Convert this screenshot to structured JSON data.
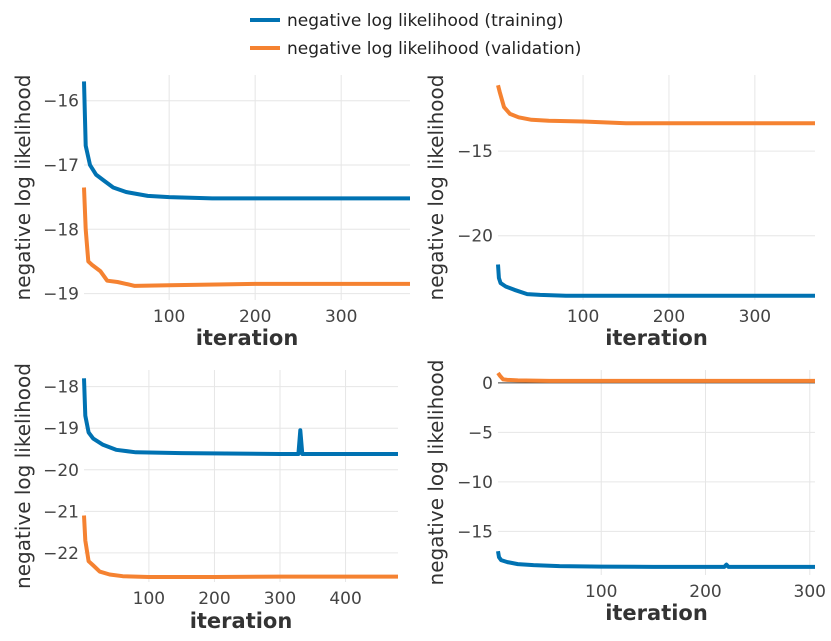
{
  "legend": {
    "placement": "top-center",
    "items": [
      {
        "label": "negative log likelihood (training)",
        "color": "#0072b2"
      },
      {
        "label": "negative log likelihood (validation)",
        "color": "#f58231"
      }
    ]
  },
  "colors": {
    "training": "#0072b2",
    "validation": "#f58231",
    "grid": "#e6e6e6",
    "tick_text": "#444444"
  },
  "chart_data": [
    {
      "type": "line",
      "xlabel": "iteration",
      "ylabel": "negative log likelihood",
      "xlim": [
        1,
        380
      ],
      "ylim": [
        -19.1,
        -15.6
      ],
      "xticks": [
        100,
        200,
        300
      ],
      "yticks": [
        -16,
        -17,
        -18,
        -19
      ],
      "grid": true,
      "series": [
        {
          "name": "negative log likelihood (training)",
          "color": "#0072b2",
          "x": [
            1,
            3,
            8,
            15,
            25,
            35,
            50,
            75,
            100,
            150,
            200,
            300,
            380
          ],
          "y": [
            -15.7,
            -16.7,
            -17.0,
            -17.15,
            -17.25,
            -17.35,
            -17.42,
            -17.48,
            -17.5,
            -17.52,
            -17.52,
            -17.52,
            -17.52
          ]
        },
        {
          "name": "negative log likelihood (validation)",
          "color": "#f58231",
          "x": [
            1,
            3,
            6,
            10,
            20,
            28,
            40,
            50,
            60,
            100,
            200,
            300,
            380
          ],
          "y": [
            -17.35,
            -18.0,
            -18.5,
            -18.55,
            -18.65,
            -18.8,
            -18.82,
            -18.85,
            -18.88,
            -18.87,
            -18.85,
            -18.85,
            -18.85
          ]
        }
      ]
    },
    {
      "type": "line",
      "xlabel": "iteration",
      "ylabel": "negative log likelihood",
      "xlim": [
        1,
        370
      ],
      "ylim": [
        -23.8,
        -10.5
      ],
      "xticks": [
        100,
        200,
        300
      ],
      "yticks": [
        -15,
        -20
      ],
      "grid": true,
      "series": [
        {
          "name": "negative log likelihood (training)",
          "color": "#0072b2",
          "x": [
            1,
            2,
            4,
            10,
            20,
            35,
            50,
            80,
            100,
            200,
            370
          ],
          "y": [
            -21.7,
            -22.5,
            -22.8,
            -23.0,
            -23.2,
            -23.45,
            -23.5,
            -23.55,
            -23.55,
            -23.55,
            -23.55
          ]
        },
        {
          "name": "negative log likelihood (validation)",
          "color": "#f58231",
          "x": [
            1,
            3,
            8,
            15,
            25,
            40,
            60,
            100,
            150,
            200,
            370
          ],
          "y": [
            -11.1,
            -11.5,
            -12.4,
            -12.8,
            -13.0,
            -13.15,
            -13.2,
            -13.25,
            -13.35,
            -13.35,
            -13.35
          ]
        }
      ]
    },
    {
      "type": "line",
      "xlabel": "iteration",
      "ylabel": "negative log likelihood",
      "xlim": [
        1,
        480
      ],
      "ylim": [
        -22.7,
        -17.6
      ],
      "xticks": [
        100,
        200,
        300,
        400
      ],
      "yticks": [
        -18,
        -19,
        -20,
        -21,
        -22
      ],
      "grid": true,
      "series": [
        {
          "name": "negative log likelihood (training)",
          "color": "#0072b2",
          "x": [
            1,
            3,
            8,
            15,
            30,
            50,
            80,
            150,
            300,
            328,
            331,
            334,
            480
          ],
          "y": [
            -17.8,
            -18.7,
            -19.1,
            -19.25,
            -19.4,
            -19.52,
            -19.58,
            -19.6,
            -19.62,
            -19.62,
            -19.05,
            -19.62,
            -19.62
          ]
        },
        {
          "name": "negative log likelihood (validation)",
          "color": "#f58231",
          "x": [
            1,
            3,
            8,
            15,
            25,
            40,
            60,
            100,
            200,
            300,
            480
          ],
          "y": [
            -21.1,
            -21.7,
            -22.2,
            -22.3,
            -22.45,
            -22.52,
            -22.56,
            -22.58,
            -22.58,
            -22.57,
            -22.57
          ]
        }
      ]
    },
    {
      "type": "line",
      "xlabel": "iteration",
      "ylabel": "negative log likelihood",
      "xlim": [
        1,
        305
      ],
      "ylim": [
        -19.4,
        1.3
      ],
      "xticks": [
        100,
        200,
        300
      ],
      "yticks": [
        0,
        -5,
        -10,
        -15
      ],
      "grid": true,
      "series": [
        {
          "name": "negative log likelihood (training)",
          "color": "#0072b2",
          "x": [
            1,
            2,
            4,
            10,
            20,
            35,
            60,
            100,
            150,
            218,
            220,
            222,
            305
          ],
          "y": [
            -17.0,
            -17.6,
            -17.9,
            -18.1,
            -18.3,
            -18.4,
            -18.5,
            -18.55,
            -18.58,
            -18.58,
            -18.35,
            -18.58,
            -18.58
          ]
        },
        {
          "name": "negative log likelihood (validation)",
          "color": "#f58231",
          "x": [
            1,
            3,
            6,
            10,
            20,
            50,
            100,
            200,
            305
          ],
          "y": [
            1.0,
            0.7,
            0.35,
            0.3,
            0.25,
            0.2,
            0.2,
            0.2,
            0.2
          ]
        }
      ]
    }
  ]
}
